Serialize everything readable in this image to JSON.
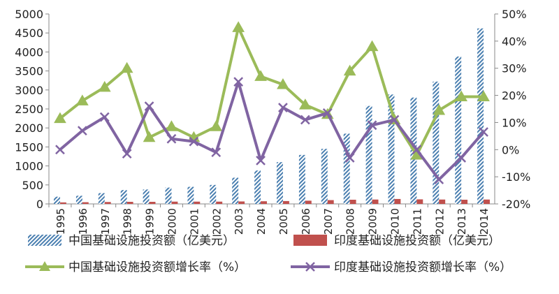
{
  "chart_data": {
    "type": "bar+line",
    "categories": [
      "1995",
      "1996",
      "1997",
      "1998",
      "1999",
      "2000",
      "2001",
      "2002",
      "2003",
      "2004",
      "2005",
      "2006",
      "2007",
      "2008",
      "2009",
      "2010",
      "2011",
      "2012",
      "2013",
      "2014"
    ],
    "y_left": {
      "ylim": [
        0,
        5000
      ],
      "ticks": [
        "0",
        "500",
        "1000",
        "1500",
        "2000",
        "2500",
        "3000",
        "3500",
        "4000",
        "4500",
        "5000"
      ]
    },
    "y_right": {
      "ylim": [
        -20,
        50
      ],
      "ticks": [
        "-20%",
        "-10%",
        "0%",
        "10%",
        "20%",
        "30%",
        "40%",
        "50%"
      ]
    },
    "series": [
      {
        "name": "中国基础设施投资额（亿美元）",
        "kind": "bar",
        "axis": "left",
        "color": "#4a7fb0",
        "values": [
          190,
          215,
          285,
          365,
          380,
          430,
          450,
          500,
          690,
          880,
          1100,
          1290,
          1450,
          1850,
          2580,
          2880,
          2800,
          3220,
          3880,
          4620
        ]
      },
      {
        "name": "印度基础设施投资额（亿美元）",
        "kind": "bar",
        "axis": "left",
        "color": "#c0504d",
        "values": [
          40,
          45,
          50,
          55,
          55,
          60,
          60,
          60,
          65,
          70,
          75,
          85,
          100,
          110,
          115,
          130,
          120,
          115,
          110,
          115
        ]
      },
      {
        "name": "中国基础设施投资额增长率（%）",
        "kind": "line",
        "axis": "right",
        "color": "#9bbb59",
        "marker": "triangle",
        "values": [
          11.5,
          18,
          23,
          30,
          4.5,
          8.5,
          4.5,
          8.5,
          45,
          27,
          24,
          16.5,
          13,
          29,
          38,
          11,
          -2,
          14.5,
          19.5,
          19.5
        ]
      },
      {
        "name": "印度基础设施投资额增长率（%）",
        "kind": "line",
        "axis": "right",
        "color": "#8064a2",
        "marker": "x",
        "values": [
          0,
          7,
          12,
          -1.5,
          16,
          4,
          3,
          -1,
          25,
          -4,
          15.5,
          11,
          13.5,
          -3,
          9,
          11,
          0,
          -11,
          -3,
          6.5
        ]
      }
    ],
    "legend": [
      "中国基础设施投资额（亿美元）",
      "印度基础设施投资额（亿美元）",
      "中国基础设施投资额增长率（%）",
      "印度基础设施投资额增长率（%）"
    ],
    "legend_position": "bottom",
    "grid": false
  }
}
